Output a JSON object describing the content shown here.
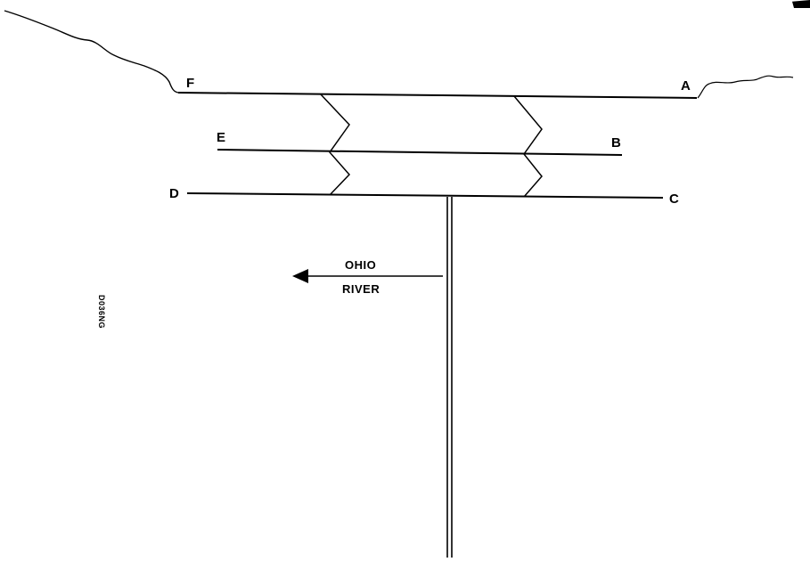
{
  "diagram": {
    "points": {
      "a": "A",
      "b": "B",
      "c": "C",
      "d": "D",
      "e": "E",
      "f": "F"
    },
    "river": {
      "line1": "OHIO",
      "line2": "RIVER"
    },
    "drawing_code": "D036NG"
  },
  "colors": {
    "ink": "#000000",
    "background": "#ffffff"
  }
}
